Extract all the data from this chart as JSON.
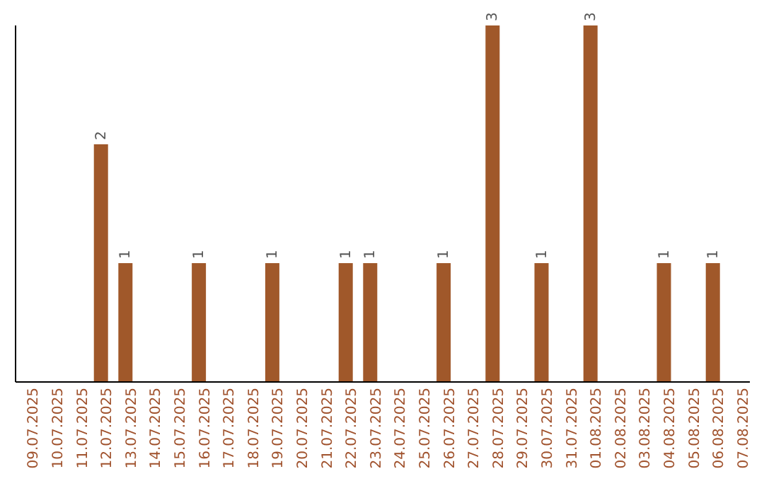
{
  "chart_data": {
    "type": "bar",
    "categories": [
      "09.07.2025",
      "10.07.2025",
      "11.07.2025",
      "12.07.2025",
      "13.07.2025",
      "14.07.2025",
      "15.07.2025",
      "16.07.2025",
      "17.07.2025",
      "18.07.2025",
      "19.07.2025",
      "20.07.2025",
      "21.07.2025",
      "22.07.2025",
      "23.07.2025",
      "24.07.2025",
      "25.07.2025",
      "26.07.2025",
      "27.07.2025",
      "28.07.2025",
      "29.07.2025",
      "30.07.2025",
      "31.07.2025",
      "01.08.2025",
      "02.08.2025",
      "03.08.2025",
      "04.08.2025",
      "05.08.2025",
      "06.08.2025",
      "07.08.2025"
    ],
    "values": [
      null,
      null,
      null,
      2,
      1,
      null,
      null,
      1,
      null,
      null,
      1,
      null,
      null,
      1,
      1,
      null,
      null,
      1,
      null,
      3,
      null,
      1,
      null,
      3,
      null,
      null,
      1,
      null,
      1,
      null
    ],
    "color": "#a0582a",
    "data_labels": true,
    "grid": false,
    "legend": false
  }
}
